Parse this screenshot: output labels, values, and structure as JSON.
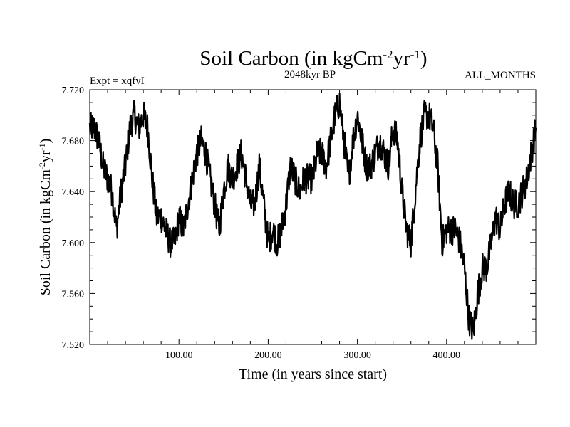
{
  "chart_data": {
    "type": "line",
    "title": {
      "main": "Soil Carbon (in kgCm",
      "exp1": "-2",
      "mid": "yr",
      "exp2": "-1",
      "end": ")"
    },
    "subtitle_left": "Expt = xqfvI",
    "subtitle_center": "2048kyr BP",
    "subtitle_right": "ALL_MONTHS",
    "xlabel": "Time (in years since start)",
    "ylabel": {
      "main": "Soil Carbon (in kgCm",
      "exp1": "-2",
      "mid": "yr",
      "exp2": "-1",
      "end": ")"
    },
    "xlim": [
      0,
      500
    ],
    "ylim": [
      7.52,
      7.72
    ],
    "x_ticks": [
      {
        "value": 100,
        "label": "100.00"
      },
      {
        "value": 200,
        "label": "200.00"
      },
      {
        "value": 300,
        "label": "300.00"
      },
      {
        "value": 400,
        "label": "400.00"
      }
    ],
    "y_ticks": [
      {
        "value": 7.52,
        "label": "7.520"
      },
      {
        "value": 7.56,
        "label": "7.560"
      },
      {
        "value": 7.6,
        "label": "7.600"
      },
      {
        "value": 7.64,
        "label": "7.640"
      },
      {
        "value": 7.68,
        "label": "7.680"
      },
      {
        "value": 7.72,
        "label": "7.720"
      }
    ],
    "series": [
      {
        "name": "Soil Carbon",
        "color": "#000000",
        "x": [
          0,
          5,
          10,
          15,
          20,
          25,
          30,
          35,
          40,
          45,
          50,
          55,
          60,
          65,
          70,
          75,
          80,
          85,
          90,
          95,
          100,
          105,
          110,
          115,
          120,
          125,
          130,
          135,
          140,
          145,
          150,
          155,
          160,
          165,
          170,
          175,
          180,
          185,
          190,
          195,
          200,
          205,
          210,
          215,
          220,
          225,
          230,
          235,
          240,
          245,
          250,
          255,
          260,
          265,
          270,
          275,
          280,
          285,
          290,
          295,
          300,
          305,
          310,
          315,
          320,
          325,
          330,
          335,
          340,
          345,
          350,
          355,
          360,
          365,
          370,
          375,
          380,
          385,
          390,
          395,
          400,
          405,
          410,
          415,
          420,
          425,
          430,
          435,
          440,
          445,
          450,
          455,
          460,
          465,
          470,
          475,
          480,
          485,
          490,
          495,
          500
        ],
        "y": [
          7.69,
          7.69,
          7.68,
          7.66,
          7.65,
          7.64,
          7.61,
          7.64,
          7.66,
          7.69,
          7.7,
          7.69,
          7.7,
          7.69,
          7.65,
          7.62,
          7.62,
          7.61,
          7.6,
          7.6,
          7.62,
          7.61,
          7.63,
          7.65,
          7.67,
          7.68,
          7.67,
          7.65,
          7.63,
          7.61,
          7.64,
          7.66,
          7.65,
          7.66,
          7.67,
          7.65,
          7.63,
          7.63,
          7.66,
          7.63,
          7.6,
          7.61,
          7.6,
          7.61,
          7.63,
          7.66,
          7.65,
          7.64,
          7.65,
          7.65,
          7.65,
          7.67,
          7.67,
          7.66,
          7.68,
          7.7,
          7.71,
          7.68,
          7.65,
          7.68,
          7.7,
          7.68,
          7.66,
          7.66,
          7.67,
          7.68,
          7.67,
          7.66,
          7.69,
          7.68,
          7.64,
          7.61,
          7.6,
          7.64,
          7.68,
          7.7,
          7.7,
          7.69,
          7.66,
          7.6,
          7.61,
          7.61,
          7.61,
          7.6,
          7.58,
          7.54,
          7.53,
          7.56,
          7.58,
          7.58,
          7.6,
          7.62,
          7.61,
          7.63,
          7.64,
          7.63,
          7.63,
          7.64,
          7.65,
          7.67,
          7.69
        ]
      }
    ]
  }
}
